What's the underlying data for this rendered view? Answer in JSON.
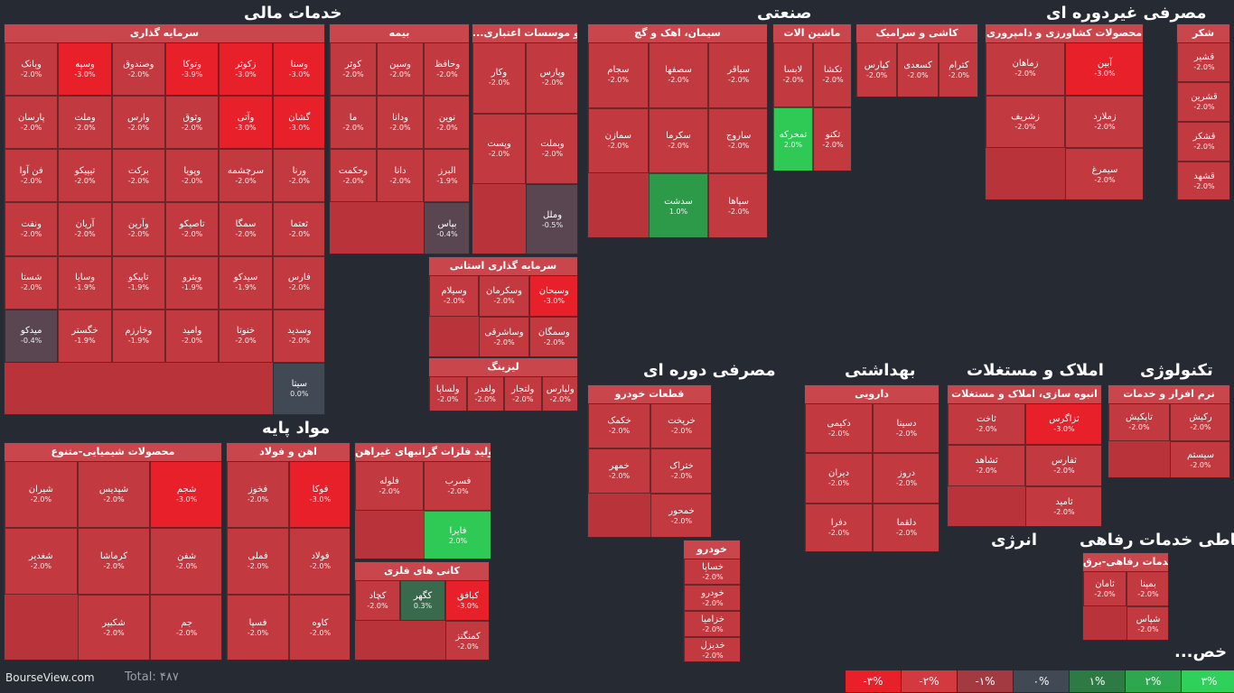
{
  "brand": "BourseView.com",
  "total_label": "Total: ۴۸۷",
  "legend": [
    {
      "label": "-۳%",
      "color": "#e8202a"
    },
    {
      "label": "-۲%",
      "color": "#d23a40"
    },
    {
      "label": "-۱%",
      "color": "#a33a42"
    },
    {
      "label": "۰%",
      "color": "#414955"
    },
    {
      "label": "۱%",
      "color": "#2d7a45"
    },
    {
      "label": "۲%",
      "color": "#2ea84f"
    },
    {
      "label": "۳%",
      "color": "#2fd15a"
    }
  ],
  "chart_data": {
    "type": "treemap",
    "title": "",
    "sectors": [
      "خدمات مالی",
      "صنعتی",
      "مصرفی غیردوره ای",
      "مواد پایه",
      "مصرفی دوره ای",
      "بهداشتی",
      "املاک و مستغلات",
      "تکنولوژی",
      "انرژی",
      "ارتباطی خدمات رفاهی...",
      "...خص"
    ],
    "industries": [
      {
        "name": "سرمایه گذاری",
        "tiles": [
          {
            "n": "وسنا",
            "p": -3
          },
          {
            "n": "زکوثر",
            "p": -3
          },
          {
            "n": "وتوکا",
            "p": -3.9
          },
          {
            "n": "وصندوق",
            "p": -2
          },
          {
            "n": "وسپه",
            "p": -3
          },
          {
            "n": "وبانک",
            "p": -2
          },
          {
            "n": "گشان",
            "p": -3
          },
          {
            "n": "وآتی",
            "p": -3
          },
          {
            "n": "وثوق",
            "p": -2
          },
          {
            "n": "وارس",
            "p": -2
          },
          {
            "n": "وملت",
            "p": -2
          },
          {
            "n": "پارسان",
            "p": -2
          },
          {
            "n": "ورنا",
            "p": -2
          },
          {
            "n": "سرچشمه",
            "p": -2
          },
          {
            "n": "وپویا",
            "p": -2
          },
          {
            "n": "برکت",
            "p": -2
          },
          {
            "n": "تیپیکو",
            "p": -2
          },
          {
            "n": "فن آوا",
            "p": -2
          },
          {
            "n": "ثعتما",
            "p": -2
          },
          {
            "n": "سمگا",
            "p": -2
          },
          {
            "n": "تاصیکو",
            "p": -2
          },
          {
            "n": "وآرین",
            "p": -2
          },
          {
            "n": "آریان",
            "p": -2
          },
          {
            "n": "ونفت",
            "p": -2
          },
          {
            "n": "فارس",
            "p": -2
          },
          {
            "n": "سیدکو",
            "p": -1.9
          },
          {
            "n": "ویترو",
            "p": -1.9
          },
          {
            "n": "تاپیکو",
            "p": -1.9
          },
          {
            "n": "وسایا",
            "p": -1.9
          },
          {
            "n": "شستا",
            "p": -2
          },
          {
            "n": "وسدید",
            "p": -2
          },
          {
            "n": "خنوتا",
            "p": -2
          },
          {
            "n": "وامید",
            "p": -2
          },
          {
            "n": "وخارزم",
            "p": -1.9
          },
          {
            "n": "خگستر",
            "p": -1.9
          },
          {
            "n": "میدکو",
            "p": -0.4
          },
          {
            "n": "سیتا",
            "p": 0
          }
        ]
      },
      {
        "name": "بیمه",
        "tiles": [
          {
            "n": "وحافظ",
            "p": -2
          },
          {
            "n": "وسین",
            "p": -2
          },
          {
            "n": "کوثر",
            "p": -2
          },
          {
            "n": "نوین",
            "p": -2
          },
          {
            "n": "ودانا",
            "p": -2
          },
          {
            "n": "ما",
            "p": -2
          },
          {
            "n": "البرز",
            "p": -1.9
          },
          {
            "n": "دانا",
            "p": -2
          },
          {
            "n": "وحکمت",
            "p": -2
          },
          {
            "n": "بپاس",
            "p": -0.4
          }
        ]
      },
      {
        "name": "...و موسسات اعتباری",
        "tiles": [
          {
            "n": "وپارس",
            "p": -2
          },
          {
            "n": "وکار",
            "p": -2
          },
          {
            "n": "وبملت",
            "p": -2
          },
          {
            "n": "وپست",
            "p": -2
          },
          {
            "n": "وملل",
            "p": -0.5
          }
        ]
      },
      {
        "name": "سرمایه گذاری استانی",
        "tiles": [
          {
            "n": "وسبحان",
            "p": -3
          },
          {
            "n": "وسکرمان",
            "p": -2
          },
          {
            "n": "وسیلام",
            "p": -2
          },
          {
            "n": "وسمگان",
            "p": -2
          },
          {
            "n": "وساشرقی",
            "p": -2
          }
        ]
      },
      {
        "name": "لیزینگ",
        "tiles": [
          {
            "n": "ولپارس",
            "p": -2
          },
          {
            "n": "ولتجار",
            "p": -2
          },
          {
            "n": "ولغدر",
            "p": -2
          },
          {
            "n": "ولساپا",
            "p": -2
          }
        ]
      },
      {
        "name": "سیمان، اهک و گچ",
        "tiles": [
          {
            "n": "سباقر",
            "p": -2
          },
          {
            "n": "سصفها",
            "p": -2
          },
          {
            "n": "سجام",
            "p": -2
          },
          {
            "n": "ساروج",
            "p": -2
          },
          {
            "n": "سکرما",
            "p": -2
          },
          {
            "n": "سمازن",
            "p": -2
          },
          {
            "n": "سپاها",
            "p": -2
          },
          {
            "n": "سدشت",
            "p": 1
          }
        ]
      },
      {
        "name": "ماشین الات",
        "tiles": [
          {
            "n": "تکشا",
            "p": -2
          },
          {
            "n": "لابسا",
            "p": -2
          },
          {
            "n": "تکنو",
            "p": -2
          },
          {
            "n": "تمحرکه",
            "p": 2
          }
        ]
      },
      {
        "name": "کاشی و سرامیک",
        "tiles": [
          {
            "n": "کترام",
            "p": -2
          },
          {
            "n": "کسعدی",
            "p": -2
          },
          {
            "n": "کپارس",
            "p": -2
          }
        ]
      },
      {
        "name": "قطعات خودرو",
        "tiles": [
          {
            "n": "خریخت",
            "p": -2
          },
          {
            "n": "خکمک",
            "p": -2
          },
          {
            "n": "ختراک",
            "p": -2
          },
          {
            "n": "خمهر",
            "p": -2
          },
          {
            "n": "خمحور",
            "p": -2
          }
        ]
      },
      {
        "name": "دارویی",
        "tiles": [
          {
            "n": "دسینا",
            "p": -2
          },
          {
            "n": "دکیمی",
            "p": -2
          },
          {
            "n": "دروز",
            "p": -2
          },
          {
            "n": "دیران",
            "p": -2
          },
          {
            "n": "دلقما",
            "p": -2
          },
          {
            "n": "دفرا",
            "p": -2
          }
        ]
      },
      {
        "name": "انبوه سازی، املاک و مستغلات",
        "tiles": [
          {
            "n": "ثزاگرس",
            "p": -3
          },
          {
            "n": "ثاخت",
            "p": -2
          },
          {
            "n": "ثفارس",
            "p": -2
          },
          {
            "n": "ثشاهد",
            "p": -2
          },
          {
            "n": "ثامید",
            "p": -2
          }
        ]
      },
      {
        "name": "نرم افزار و خدمات",
        "tiles": [
          {
            "n": "رکیش",
            "p": -2
          },
          {
            "n": "تاپکیش",
            "p": -2
          },
          {
            "n": "سیستم",
            "p": -2
          }
        ]
      },
      {
        "name": "محصولات شیمیایی-متنوع",
        "tiles": [
          {
            "n": "شجم",
            "p": -3
          },
          {
            "n": "شپدیس",
            "p": -2
          },
          {
            "n": "شیران",
            "p": -2
          },
          {
            "n": "شفن",
            "p": -2
          },
          {
            "n": "کرماشا",
            "p": -2
          },
          {
            "n": "شغدیر",
            "p": -2
          },
          {
            "n": "جم",
            "p": -2
          },
          {
            "n": "شکبیر",
            "p": -2
          }
        ]
      },
      {
        "name": "اهن و فولاد",
        "tiles": [
          {
            "n": "فوکا",
            "p": -3
          },
          {
            "n": "فخوز",
            "p": -2
          },
          {
            "n": "فولاد",
            "p": -2
          },
          {
            "n": "فملی",
            "p": -2
          },
          {
            "n": "کاوه",
            "p": -2
          },
          {
            "n": "فسپا",
            "p": -2
          }
        ]
      },
      {
        "name": "کانی های فلزی",
        "tiles": [
          {
            "n": "کبافق",
            "p": -3
          },
          {
            "n": "کگهر",
            "p": 0.3
          },
          {
            "n": "کچاد",
            "p": -2
          },
          {
            "n": "کمنگنز",
            "p": -2
          }
        ]
      },
      {
        "name": "شکر",
        "tiles": [
          {
            "n": "قشیر",
            "p": -2
          },
          {
            "n": "قشرین",
            "p": -2
          },
          {
            "n": "قشکر",
            "p": -2
          },
          {
            "n": "قشهد",
            "p": -2
          }
        ]
      },
      {
        "name": "محصولات کشاورزی و دامپروری",
        "tiles": [
          {
            "n": "آبین",
            "p": -3
          },
          {
            "n": "زماهان",
            "p": -2
          },
          {
            "n": "زملارد",
            "p": -2
          },
          {
            "n": "زشریف",
            "p": -2
          },
          {
            "n": "سیمرغ",
            "p": -2
          }
        ]
      },
      {
        "name": "تولید فلزات گرانبهای غیراهن",
        "tiles": [
          {
            "n": "فسرب",
            "p": -2
          },
          {
            "n": "فلوله",
            "p": -2
          },
          {
            "n": "فایرا",
            "p": 2
          }
        ]
      },
      {
        "name": "خودرو",
        "tiles": [
          {
            "n": "خساپا",
            "p": -2
          },
          {
            "n": "خودرو",
            "p": -2
          },
          {
            "n": "خزامیا",
            "p": -2
          },
          {
            "n": "خدیزل",
            "p": -2
          }
        ]
      },
      {
        "name": "خدمات رفاهی-برق",
        "tiles": [
          {
            "n": "بمپنا",
            "p": -2
          },
          {
            "n": "ثامان",
            "p": -2
          },
          {
            "n": "شپاس",
            "p": -2
          }
        ]
      }
    ]
  }
}
